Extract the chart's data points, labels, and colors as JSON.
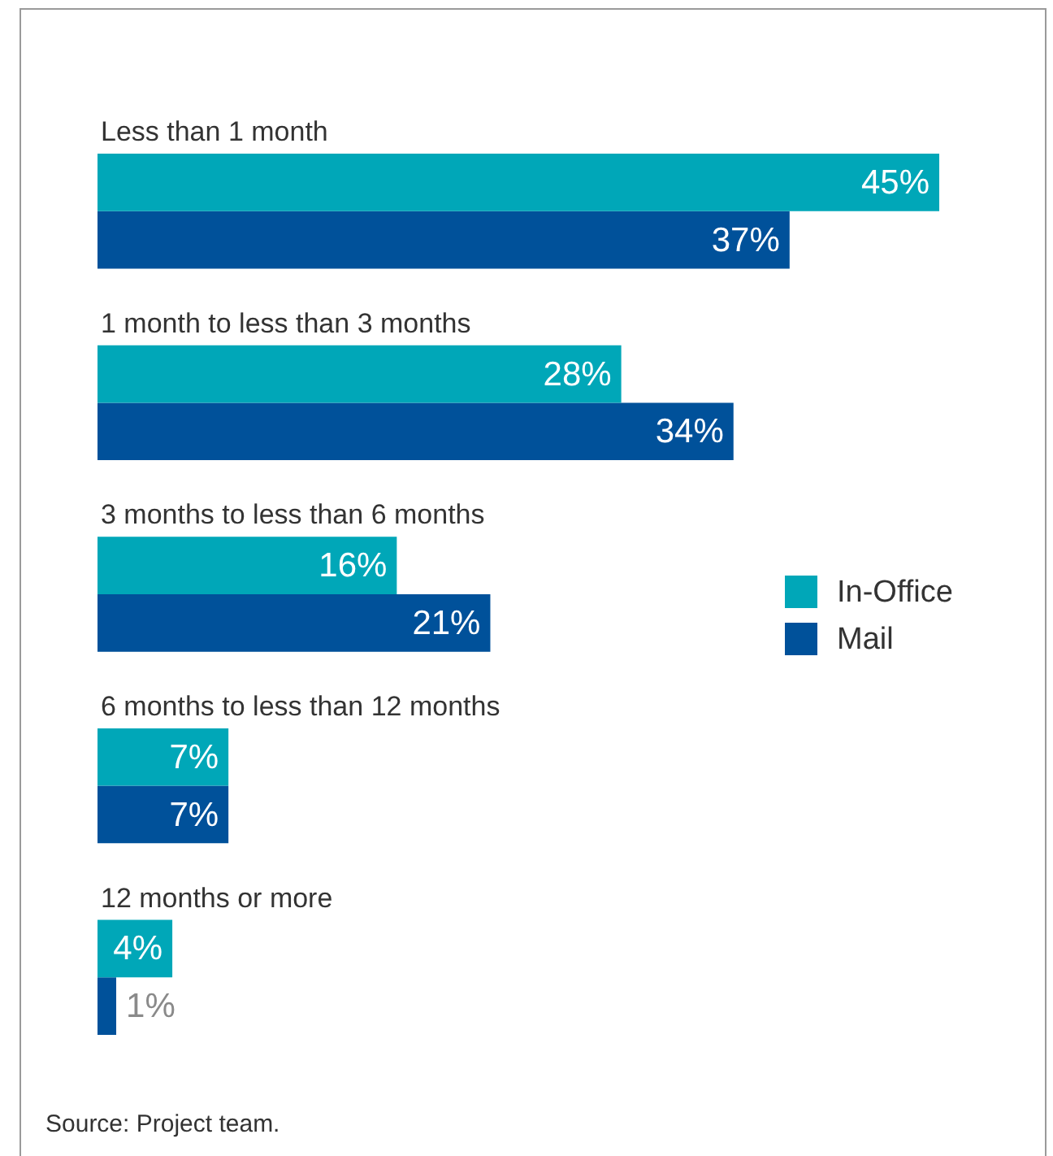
{
  "chart_data": {
    "type": "bar",
    "orientation": "horizontal",
    "categories": [
      "Less than 1 month",
      "1 month to less than 3 months",
      "3 months to less than 6 months",
      "6 months to less than 12 months",
      "12 months or more"
    ],
    "series": [
      {
        "name": "In-Office",
        "color": "#00a7b8",
        "values": [
          45,
          28,
          16,
          7,
          4
        ],
        "value_labels": [
          "45%",
          "28%",
          "16%",
          "7%",
          "4%"
        ]
      },
      {
        "name": "Mail",
        "color": "#00519a",
        "values": [
          37,
          34,
          21,
          7,
          1
        ],
        "value_labels": [
          "37%",
          "34%",
          "21%",
          "7%",
          "1%"
        ]
      }
    ],
    "legend": "right",
    "annotations": [
      "Source: Project team."
    ]
  }
}
